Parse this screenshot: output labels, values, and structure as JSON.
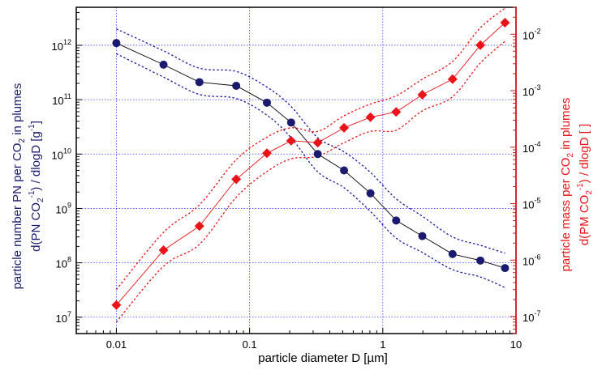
{
  "chart_data": {
    "type": "scatter",
    "xlabel": "particle diameter D [µm]",
    "x_scale": "log",
    "xlim": [
      0.005,
      10
    ],
    "x_ticks": [
      {
        "value": 0.01,
        "label": "0.01"
      },
      {
        "value": 0.1,
        "label": "0.1"
      },
      {
        "value": 1,
        "label": "1"
      },
      {
        "value": 10,
        "label": "10"
      }
    ],
    "left_axis": {
      "label_line1": "particle number PN per CO",
      "label_line1_sub": "2",
      "label_line1_end": " in plumes",
      "label_line2": "d(PN CO",
      "label_line2_sub": "2",
      "label_line2_sup": "-1",
      "label_line2_end": ") / dlogD [g",
      "label_line2_sup2": "-1",
      "label_line2_close": "]",
      "scale": "log",
      "ylim": [
        5000000,
        5000000000000
      ],
      "color": "#1a1a6e",
      "ticks": [
        {
          "base": "10",
          "exp": "7",
          "value": 10000000
        },
        {
          "base": "10",
          "exp": "8",
          "value": 100000000
        },
        {
          "base": "10",
          "exp": "9",
          "value": 1000000000
        },
        {
          "base": "10",
          "exp": "10",
          "value": 10000000000
        },
        {
          "base": "10",
          "exp": "11",
          "value": 100000000000
        },
        {
          "base": "10",
          "exp": "12",
          "value": 1000000000000
        }
      ]
    },
    "right_axis": {
      "label_line1": "particle mass per CO",
      "label_line1_sub": "2",
      "label_line1_end": " in plumes",
      "label_line2": "d(PM CO",
      "label_line2_sub": "2",
      "label_line2_sup": "-1",
      "label_line2_end": ") / dlogD [ ]",
      "scale": "log",
      "ylim": [
        5e-08,
        0.03
      ],
      "color": "#e8141a",
      "ticks": [
        {
          "base": "10",
          "exp": "-7",
          "value": 1e-07
        },
        {
          "base": "10",
          "exp": "-6",
          "value": 1e-06
        },
        {
          "base": "10",
          "exp": "-5",
          "value": 1e-05
        },
        {
          "base": "10",
          "exp": "-4",
          "value": 0.0001
        },
        {
          "base": "10",
          "exp": "-3",
          "value": 0.001
        },
        {
          "base": "10",
          "exp": "-2",
          "value": 0.01
        }
      ]
    },
    "grid": true,
    "x": [
      0.01,
      0.0226,
      0.042,
      0.0794,
      0.135,
      0.205,
      0.325,
      0.512,
      0.808,
      1.26,
      1.98,
      3.34,
      5.4,
      8.27
    ],
    "series": [
      {
        "name": "PN",
        "axis": "left",
        "marker": "circle",
        "color": "#1a1a6e",
        "line_color": "#000000",
        "values": [
          1100000000000,
          440000000000,
          210000000000,
          180000000000,
          88000000000,
          38000000000,
          10000000000,
          5000000000,
          1900000000,
          600000000,
          310000000,
          145000000,
          110000000,
          80000000
        ],
        "upper": [
          2000000000000,
          790000000000,
          380000000000,
          330000000000,
          170000000000,
          75000000000,
          20000000000,
          11000000000,
          4600000000,
          1500000000,
          720000000,
          300000000,
          210000000,
          150000000
        ],
        "lower": [
          700000000000,
          260000000000,
          125000000000,
          105000000000,
          52000000000,
          20000000000,
          4700000000,
          2400000000,
          880000000,
          285000000,
          155000000,
          75000000,
          55000000,
          35000000
        ]
      },
      {
        "name": "PM",
        "axis": "right",
        "marker": "diamond",
        "color": "#e8141a",
        "line_color": "#e8141a",
        "values": [
          1.6e-07,
          1.5e-06,
          4e-06,
          2.7e-05,
          7.8e-05,
          0.00013,
          0.00012,
          0.00022,
          0.00034,
          0.00042,
          0.00085,
          0.0016,
          0.0064,
          0.016
        ],
        "upper": [
          3e-07,
          3.1e-06,
          9.5e-06,
          6e-05,
          0.00015,
          0.00022,
          0.00019,
          0.00036,
          0.00058,
          0.00081,
          0.0016,
          0.0033,
          0.013,
          0.029
        ],
        "lower": [
          8e-08,
          7.8e-07,
          1.9e-06,
          1.3e-05,
          3.7e-05,
          6.2e-05,
          6.9e-05,
          0.00012,
          0.00019,
          0.0002,
          0.00044,
          0.00078,
          0.0031,
          0.0075
        ]
      }
    ]
  }
}
